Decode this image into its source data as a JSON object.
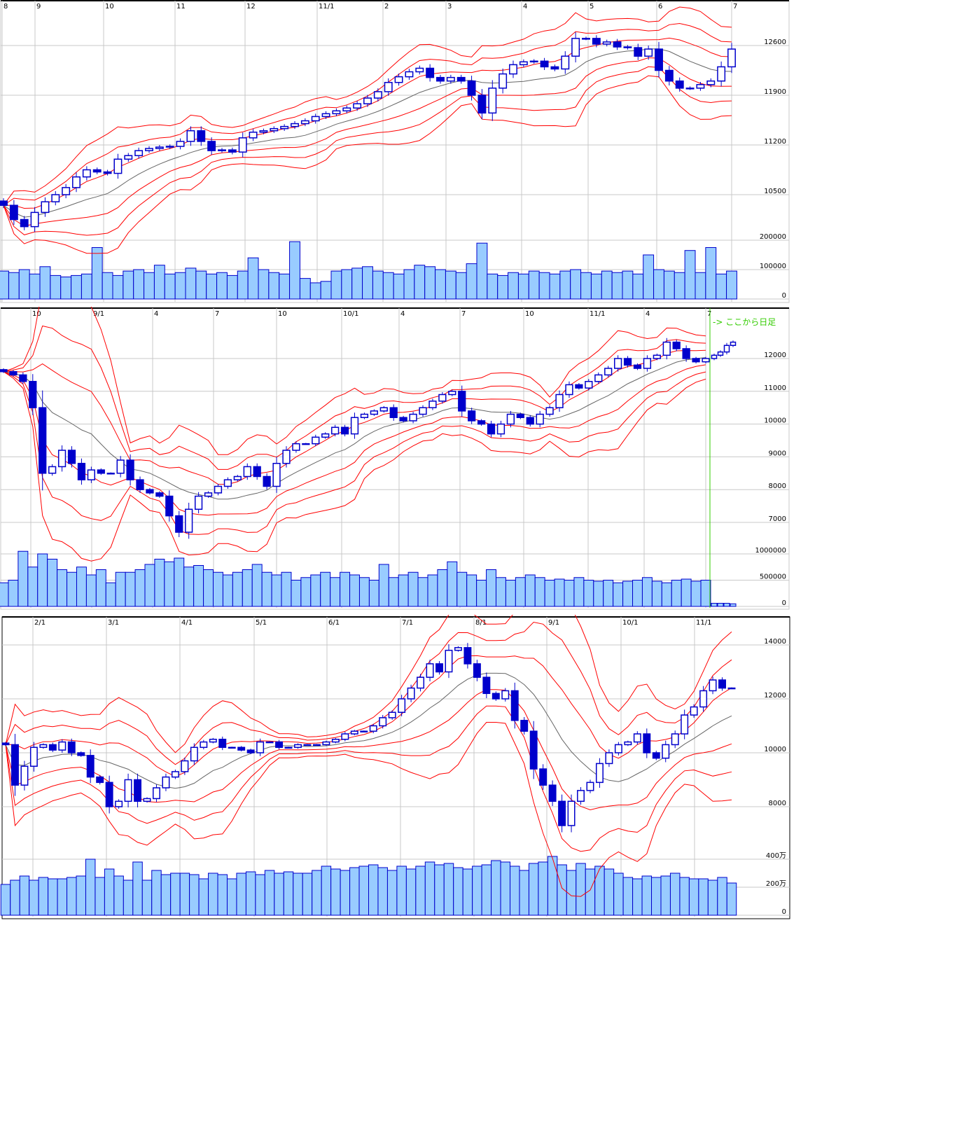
{
  "colors": {
    "candle": "#0000cc",
    "volume_fill": "#99ccff",
    "volume_stroke": "#0000cc",
    "bands": "#ff0000",
    "moving_average": "#666666",
    "grid": "#c8c8c8",
    "annotation": "#33cc00"
  },
  "chart_data": [
    {
      "type": "candlestick",
      "bands": "bollinger ±1σ/±2σ/±3σ with moving average",
      "x_tick_labels": [
        "8",
        "9",
        "10",
        "11",
        "12",
        "11/1",
        "2",
        "3",
        "4",
        "5",
        "6",
        "7"
      ],
      "price_ticks": [
        12600,
        11900,
        11200,
        10500
      ],
      "price_tick_labels": [
        "12600",
        "11900",
        "11200",
        "10500"
      ],
      "volume_ticks": [
        200000,
        100000,
        0
      ],
      "volume_tick_labels": [
        "200000",
        "100000",
        "0"
      ],
      "closes": [
        10350,
        10150,
        10050,
        10250,
        10400,
        10500,
        10600,
        10750,
        10850,
        10820,
        10800,
        11000,
        11050,
        11120,
        11150,
        11170,
        11180,
        11250,
        11400,
        11250,
        11120,
        11130,
        11100,
        11300,
        11380,
        11400,
        11430,
        11460,
        11500,
        11540,
        11600,
        11640,
        11680,
        11720,
        11780,
        11860,
        11950,
        12080,
        12160,
        12230,
        12280,
        12150,
        12100,
        12150,
        12100,
        11900,
        11650,
        12000,
        12200,
        12330,
        12370,
        12380,
        12300,
        12270,
        12450,
        12700,
        12700,
        12620,
        12650,
        12580,
        12570,
        12450,
        12550,
        12250,
        12100,
        12000,
        12000,
        12050,
        12100,
        12300,
        12550
      ],
      "volumes": [
        95000,
        90000,
        100000,
        85000,
        110000,
        80000,
        75000,
        80000,
        85000,
        175000,
        90000,
        80000,
        95000,
        100000,
        90000,
        115000,
        85000,
        90000,
        105000,
        95000,
        85000,
        90000,
        80000,
        95000,
        140000,
        100000,
        90000,
        85000,
        195000,
        70000,
        55000,
        60000,
        95000,
        100000,
        105000,
        110000,
        95000,
        90000,
        85000,
        100000,
        115000,
        110000,
        100000,
        95000,
        90000,
        120000,
        190000,
        85000,
        80000,
        90000,
        85000,
        95000,
        90000,
        85000,
        95000,
        100000,
        90000,
        85000,
        95000,
        90000,
        95000,
        85000,
        150000,
        100000,
        95000,
        90000,
        165000,
        90000,
        175000,
        85000,
        95000
      ]
    },
    {
      "type": "candlestick",
      "bands": "bollinger ±1σ/±2σ/±3σ with moving average",
      "x_tick_labels": [
        "10",
        "9/1",
        "4",
        "7",
        "10",
        "10/1",
        "4",
        "7",
        "10",
        "11/1",
        "4",
        "7"
      ],
      "price_ticks": [
        12000,
        11000,
        10000,
        9000,
        8000,
        7000
      ],
      "price_tick_labels": [
        "12000",
        "11000",
        "10000",
        "9000",
        "8000",
        "7000"
      ],
      "volume_ticks": [
        1000000,
        500000,
        0
      ],
      "volume_tick_labels": [
        "1000000",
        "500000",
        "0"
      ],
      "annotation": "-> ここから日足",
      "closes": [
        11600,
        11500,
        11300,
        10500,
        8500,
        8700,
        9200,
        8800,
        8300,
        8600,
        8500,
        8500,
        8900,
        8300,
        8000,
        7900,
        7800,
        7200,
        6700,
        7400,
        7800,
        7900,
        8100,
        8300,
        8400,
        8700,
        8400,
        8100,
        8800,
        9200,
        9400,
        9400,
        9600,
        9700,
        9900,
        9700,
        10200,
        10300,
        10400,
        10500,
        10200,
        10100,
        10300,
        10500,
        10700,
        10900,
        11000,
        10400,
        10100,
        10000,
        9700,
        10000,
        10300,
        10200,
        10000,
        10300,
        10500,
        10900,
        11200,
        11100,
        11300,
        11500,
        11700,
        12000,
        11800,
        11700,
        12000,
        12100,
        12500,
        12300,
        12000,
        11900,
        12000
      ],
      "volumes": [
        450000,
        500000,
        1050000,
        750000,
        1000000,
        900000,
        700000,
        650000,
        750000,
        600000,
        700000,
        450000,
        650000,
        650000,
        700000,
        800000,
        900000,
        850000,
        920000,
        750000,
        780000,
        700000,
        650000,
        600000,
        650000,
        700000,
        800000,
        650000,
        600000,
        650000,
        500000,
        550000,
        600000,
        650000,
        550000,
        650000,
        600000,
        550000,
        500000,
        800000,
        550000,
        600000,
        650000,
        550000,
        600000,
        700000,
        850000,
        650000,
        600000,
        500000,
        700000,
        550000,
        500000,
        550000,
        600000,
        550000,
        500000,
        520000,
        500000,
        550000,
        500000,
        480000,
        500000,
        450000,
        480000,
        500000,
        550000,
        480000,
        450000,
        500000,
        520000,
        480000,
        500000
      ],
      "daily_closes": [
        12100,
        12200,
        12400,
        12500
      ],
      "daily_volumes": [
        60000,
        60000,
        60000,
        50000
      ]
    },
    {
      "type": "candlestick",
      "bands": "bollinger ±1σ/±2σ/±3σ with moving average",
      "x_tick_labels": [
        "2/1",
        "3/1",
        "4/1",
        "5/1",
        "6/1",
        "7/1",
        "8/1",
        "9/1",
        "10/1",
        "11/1"
      ],
      "price_ticks": [
        14000,
        12000,
        10000,
        8000
      ],
      "price_tick_labels": [
        "14000",
        "12000",
        "10000",
        "8000"
      ],
      "volume_ticks": [
        4000000,
        2000000,
        0
      ],
      "volume_tick_labels": [
        "400万",
        "200万",
        "0"
      ],
      "closes": [
        10300,
        8800,
        9500,
        10200,
        10300,
        10100,
        10400,
        10000,
        9900,
        9100,
        8900,
        8000,
        8200,
        9000,
        8200,
        8300,
        8700,
        9100,
        9300,
        9700,
        10200,
        10400,
        10500,
        10200,
        10200,
        10100,
        10000,
        10400,
        10400,
        10200,
        10200,
        10300,
        10300,
        10300,
        10400,
        10500,
        10700,
        10800,
        10800,
        11000,
        11300,
        11500,
        12000,
        12400,
        12800,
        13300,
        13000,
        13800,
        13900,
        13300,
        12800,
        12200,
        12000,
        12300,
        11200,
        10800,
        9400,
        8800,
        8200,
        7300,
        8200,
        8600,
        8900,
        9600,
        10000,
        10300,
        10400,
        10700,
        10000,
        9800,
        10300,
        10700,
        11400,
        11700,
        12300,
        12700,
        12400,
        12400
      ],
      "volumes": [
        2200000,
        2500000,
        2800000,
        2500000,
        2700000,
        2600000,
        2600000,
        2700000,
        2800000,
        4000000,
        2700000,
        3300000,
        2800000,
        2500000,
        3800000,
        2500000,
        3200000,
        2900000,
        3000000,
        3000000,
        2900000,
        2600000,
        3000000,
        2900000,
        2600000,
        3000000,
        3100000,
        2900000,
        3200000,
        3000000,
        3100000,
        3000000,
        3000000,
        3200000,
        3500000,
        3300000,
        3200000,
        3400000,
        3500000,
        3600000,
        3400000,
        3200000,
        3500000,
        3300000,
        3500000,
        3800000,
        3600000,
        3700000,
        3400000,
        3300000,
        3500000,
        3600000,
        3900000,
        3800000,
        3500000,
        3200000,
        3700000,
        3800000,
        4200000,
        3600000,
        3200000,
        3700000,
        3300000,
        3500000,
        3300000,
        3000000,
        2700000,
        2600000,
        2800000,
        2700000,
        2800000,
        3000000,
        2700000,
        2600000,
        2600000,
        2500000,
        2700000,
        2300000
      ]
    }
  ]
}
